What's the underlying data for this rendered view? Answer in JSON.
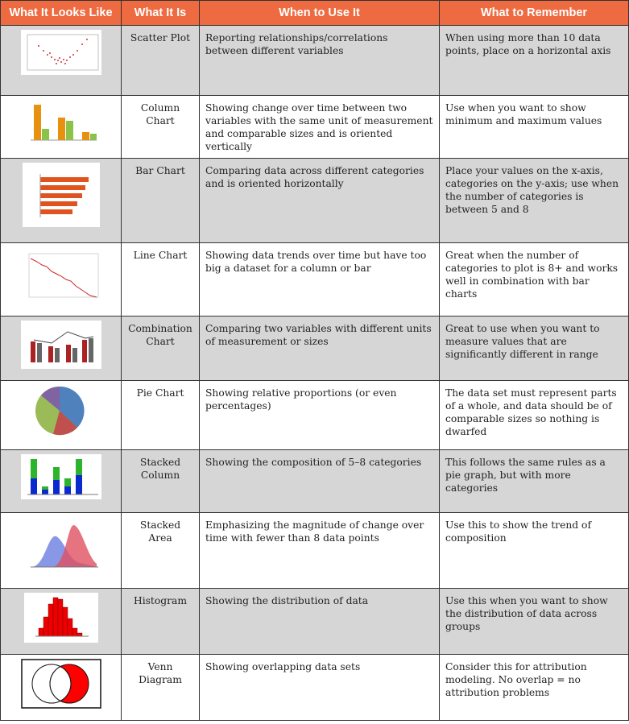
{
  "table": {
    "header": [
      "What It Looks Like",
      "What It Is",
      "When to Use It",
      "What to Remember"
    ],
    "rows": [
      {
        "type": "Scatter Plot",
        "when": "Reporting relationships/correlations between different variables",
        "remember": "When using more than 10 data points, place on a horizontal axis"
      },
      {
        "type": "Column Chart",
        "when": "Showing change over time between two variables with the same unit of measurement and comparable sizes and is oriented vertically",
        "remember": "Use when you want to show minimum and maximum values"
      },
      {
        "type": "Bar Chart",
        "when": "Comparing data across different categories and is oriented horizontally",
        "remember": "Place your values on the x-axis, categories on the y-axis; use when the number of categories is between 5 and 8"
      },
      {
        "type": "Line Chart",
        "when": "Showing data trends over time but have too big a dataset for a column or bar",
        "remember": "Great when the number of categories to plot is 8+ and works well in combination with bar charts"
      },
      {
        "type": "Combination Chart",
        "when": "Comparing two variables with different units of measurement or sizes",
        "remember": "Great to use when you want to measure values that are significantly different in range"
      },
      {
        "type": "Pie Chart",
        "when": "Showing relative proportions (or even percentages)",
        "remember": "The data set must represent parts of a whole, and data should be of comparable sizes so nothing is dwarfed"
      },
      {
        "type": "Stacked Column",
        "when": "Showing the composition of 5–8 categories",
        "remember": "This follows the same rules as a pie graph, but with more categories"
      },
      {
        "type": "Stacked Area",
        "when": "Emphasizing the magnitude of change over time with fewer than 8 data points",
        "remember": "Use this to show the trend of composition"
      },
      {
        "type": "Histogram",
        "when": "Showing the distribution of data",
        "remember": "Use this when you want to show the distribution of data across groups"
      },
      {
        "type": "Venn Diagram",
        "when": "Showing overlapping data sets",
        "remember": "Consider this for attribution modeling. No overlap = no attribution problems"
      }
    ]
  }
}
